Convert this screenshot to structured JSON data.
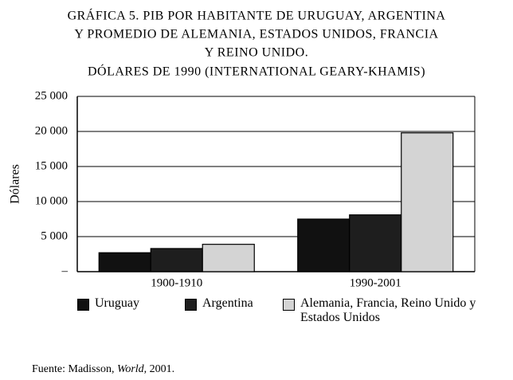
{
  "chart_data": {
    "type": "bar",
    "title_lines": [
      "GRÁFICA 5. PIB POR HABITANTE DE URUGUAY, ARGENTINA",
      "Y PROMEDIO DE ALEMANIA, ESTADOS UNIDOS, FRANCIA",
      "Y REINO UNIDO."
    ],
    "subtitle": "DÓLARES DE 1990 (INTERNATIONAL GEARY-KHAMIS)",
    "y_label": "Dólares",
    "categories": [
      "1900-1910",
      "1990-2001"
    ],
    "series": [
      {
        "name": "Uruguay",
        "color": "#111111",
        "values": [
          2700,
          7500
        ]
      },
      {
        "name": "Argentina",
        "color": "#1e1e1e",
        "values": [
          3300,
          8100
        ]
      },
      {
        "name": "Alemania, Francia, Reino Unido y Estados Unidos",
        "color": "#d4d4d4",
        "values": [
          3900,
          19800
        ]
      }
    ],
    "ylim": [
      0,
      25000
    ],
    "yticks": [
      {
        "value": 0,
        "label": "–"
      },
      {
        "value": 5000,
        "label": "5 000"
      },
      {
        "value": 10000,
        "label": "10 000"
      },
      {
        "value": 15000,
        "label": "15 000"
      },
      {
        "value": 20000,
        "label": "20 000"
      },
      {
        "value": 25000,
        "label": "25 000"
      }
    ],
    "grid": true,
    "source": [
      "Fuente: Madisson, ",
      "World",
      ", 2001."
    ]
  }
}
